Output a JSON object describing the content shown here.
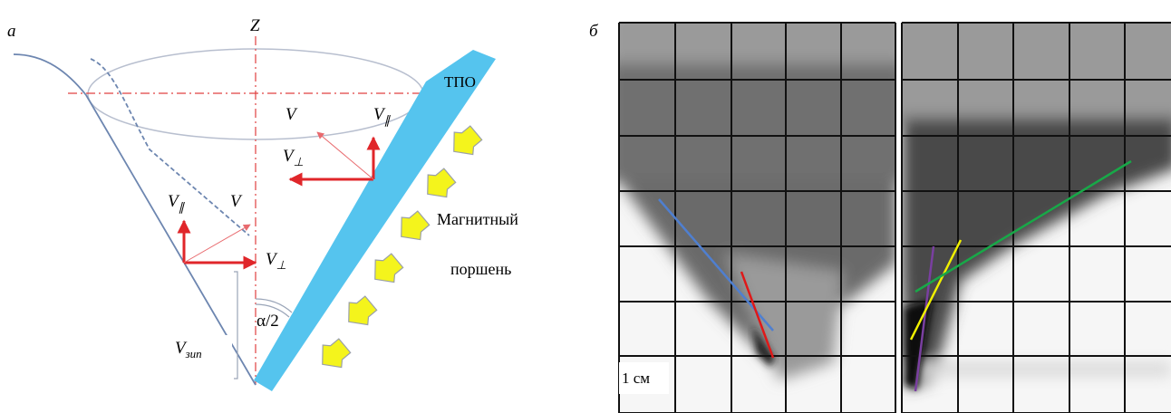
{
  "panel_a": {
    "label": "а",
    "axis_label": "Z",
    "wall_label": "ТПО",
    "upper_v": "V",
    "upper_v_par": {
      "text": "V",
      "sub": "∥"
    },
    "upper_v_perp": {
      "text": "V",
      "sub": "⊥"
    },
    "lower_v": "V",
    "lower_v_par": {
      "text": "V",
      "sub": "∥"
    },
    "lower_v_perp": {
      "text": "V",
      "sub": "⊥"
    },
    "zip_speed": {
      "text": "V",
      "sub": "зип"
    },
    "angle": "α/2",
    "piston": [
      "Магнитный",
      "поршень"
    ]
  },
  "panel_b": {
    "label": "б",
    "scale_label": "1 см"
  }
}
